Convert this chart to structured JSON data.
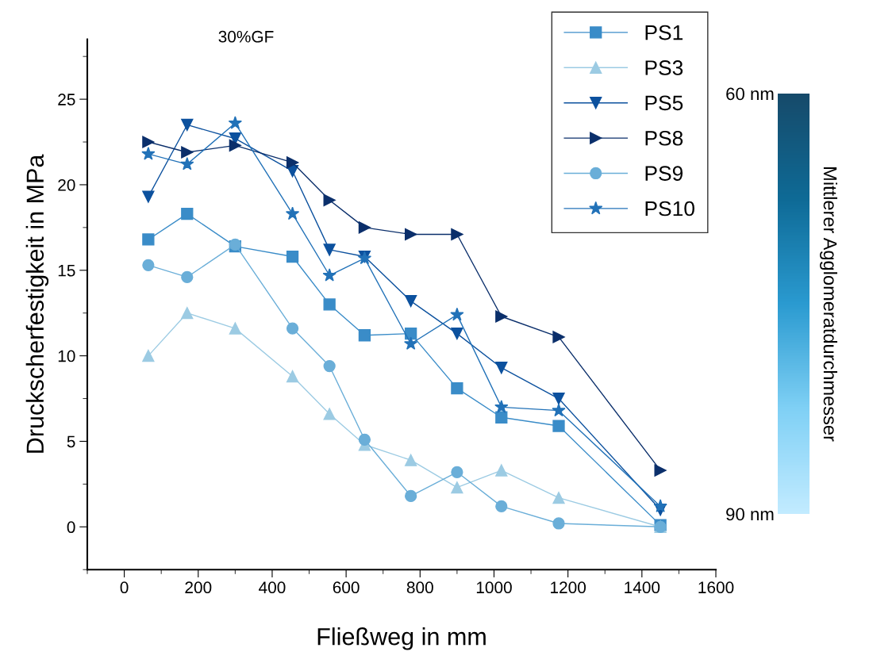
{
  "chart_data": {
    "type": "line",
    "title": "30%GF",
    "xlabel": "Fließweg in mm",
    "ylabel": "Druckscherfestigkeit in MPa",
    "x": [
      65,
      170,
      300,
      455,
      555,
      650,
      775,
      900,
      1020,
      1175,
      1450
    ],
    "series": [
      {
        "name": "PS1",
        "color": "#3a8cc8",
        "marker": "square",
        "values": [
          16.8,
          18.3,
          16.4,
          15.8,
          13.0,
          11.2,
          11.3,
          8.1,
          6.4,
          5.9,
          0.1
        ]
      },
      {
        "name": "PS3",
        "color": "#9ccbe3",
        "marker": "triangle",
        "values": [
          10.0,
          12.5,
          11.6,
          8.8,
          6.6,
          4.8,
          3.9,
          2.3,
          3.3,
          1.7,
          0.0
        ]
      },
      {
        "name": "PS5",
        "color": "#0c519e",
        "marker": "triangle-down",
        "values": [
          19.3,
          23.5,
          22.7,
          20.8,
          16.2,
          15.8,
          13.2,
          11.3,
          9.3,
          7.5,
          1.0
        ]
      },
      {
        "name": "PS8",
        "color": "#0b2f6b",
        "marker": "triangle-right",
        "values": [
          22.5,
          21.9,
          22.3,
          21.3,
          19.1,
          17.5,
          17.1,
          17.1,
          12.3,
          11.1,
          3.3
        ]
      },
      {
        "name": "PS9",
        "color": "#6aaed8",
        "marker": "circle",
        "values": [
          15.3,
          14.6,
          16.5,
          11.6,
          9.4,
          5.1,
          1.8,
          3.2,
          1.2,
          0.2,
          0.0
        ]
      },
      {
        "name": "PS10",
        "color": "#2272b8",
        "marker": "star",
        "values": [
          21.8,
          21.2,
          23.6,
          18.3,
          14.7,
          15.7,
          10.7,
          12.4,
          7.0,
          6.8,
          1.2
        ]
      }
    ],
    "xlim": [
      -100,
      1600
    ],
    "xticks": [
      0,
      200,
      400,
      600,
      800,
      1000,
      1200,
      1400,
      1600
    ],
    "ylim": [
      -2.5,
      28.5
    ],
    "yticks": [
      0,
      5,
      10,
      15,
      20,
      25
    ],
    "grid": false,
    "legend": "top right",
    "line_style": "solid",
    "clabel": "Mittlerer Agglomeratdurchmesser",
    "clim": [
      90,
      60
    ],
    "cticks": [
      {
        "value": 60,
        "label": "60 nm"
      },
      {
        "value": 90,
        "label": "90 nm"
      }
    ]
  }
}
